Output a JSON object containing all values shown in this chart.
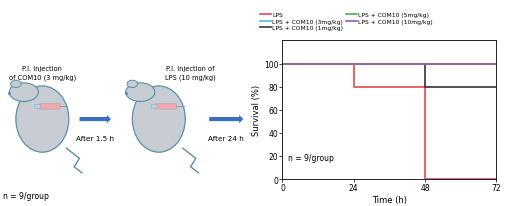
{
  "series": [
    {
      "label": "LPS",
      "color": "#e8474c",
      "x": [
        0,
        24,
        24,
        48,
        48,
        72
      ],
      "y": [
        100,
        100,
        80,
        80,
        0,
        0
      ]
    },
    {
      "label": "LPS + COM10 (1mg/kg)",
      "color": "#333333",
      "x": [
        0,
        48,
        48,
        72
      ],
      "y": [
        100,
        100,
        80,
        80
      ]
    },
    {
      "label": "LPS + COM10 (3mg/kg)",
      "color": "#4bbfda",
      "x": [
        0,
        72
      ],
      "y": [
        100,
        100
      ]
    },
    {
      "label": "LPS + COM10 (5mg/kg)",
      "color": "#3cb84a",
      "x": [
        0,
        72
      ],
      "y": [
        100,
        100
      ]
    },
    {
      "label": "LPS + COM10 (10mg/kg)",
      "color": "#9b59b6",
      "x": [
        0,
        72
      ],
      "y": [
        100,
        100
      ]
    }
  ],
  "xlabel": "Time (h)",
  "ylabel": "Survival (%)",
  "xlim": [
    0,
    72
  ],
  "ylim": [
    0,
    120
  ],
  "xticks": [
    0,
    24,
    48,
    72
  ],
  "yticks": [
    0,
    20,
    40,
    60,
    80,
    100
  ],
  "annotation": "n = 9/group",
  "legend_order": [
    0,
    2,
    1,
    3,
    4
  ],
  "left_panel": {
    "text_mouse1": "P.I. injection\nof COM10 (3 mg/kg)",
    "text_arrow1": "After 1.5 h",
    "text_mouse2": "P.I. injection of\nLPS (10 mg/kg)",
    "text_arrow2": "After 24 h",
    "n_label": "n = 9/group",
    "mouse_body_color": "#c8cdd4",
    "mouse_edge_color": "#5a8fa8",
    "arrow_color": "#3a6fc4",
    "syringe_pink": "#f4a7b0",
    "syringe_blue": "#aad4f5"
  }
}
